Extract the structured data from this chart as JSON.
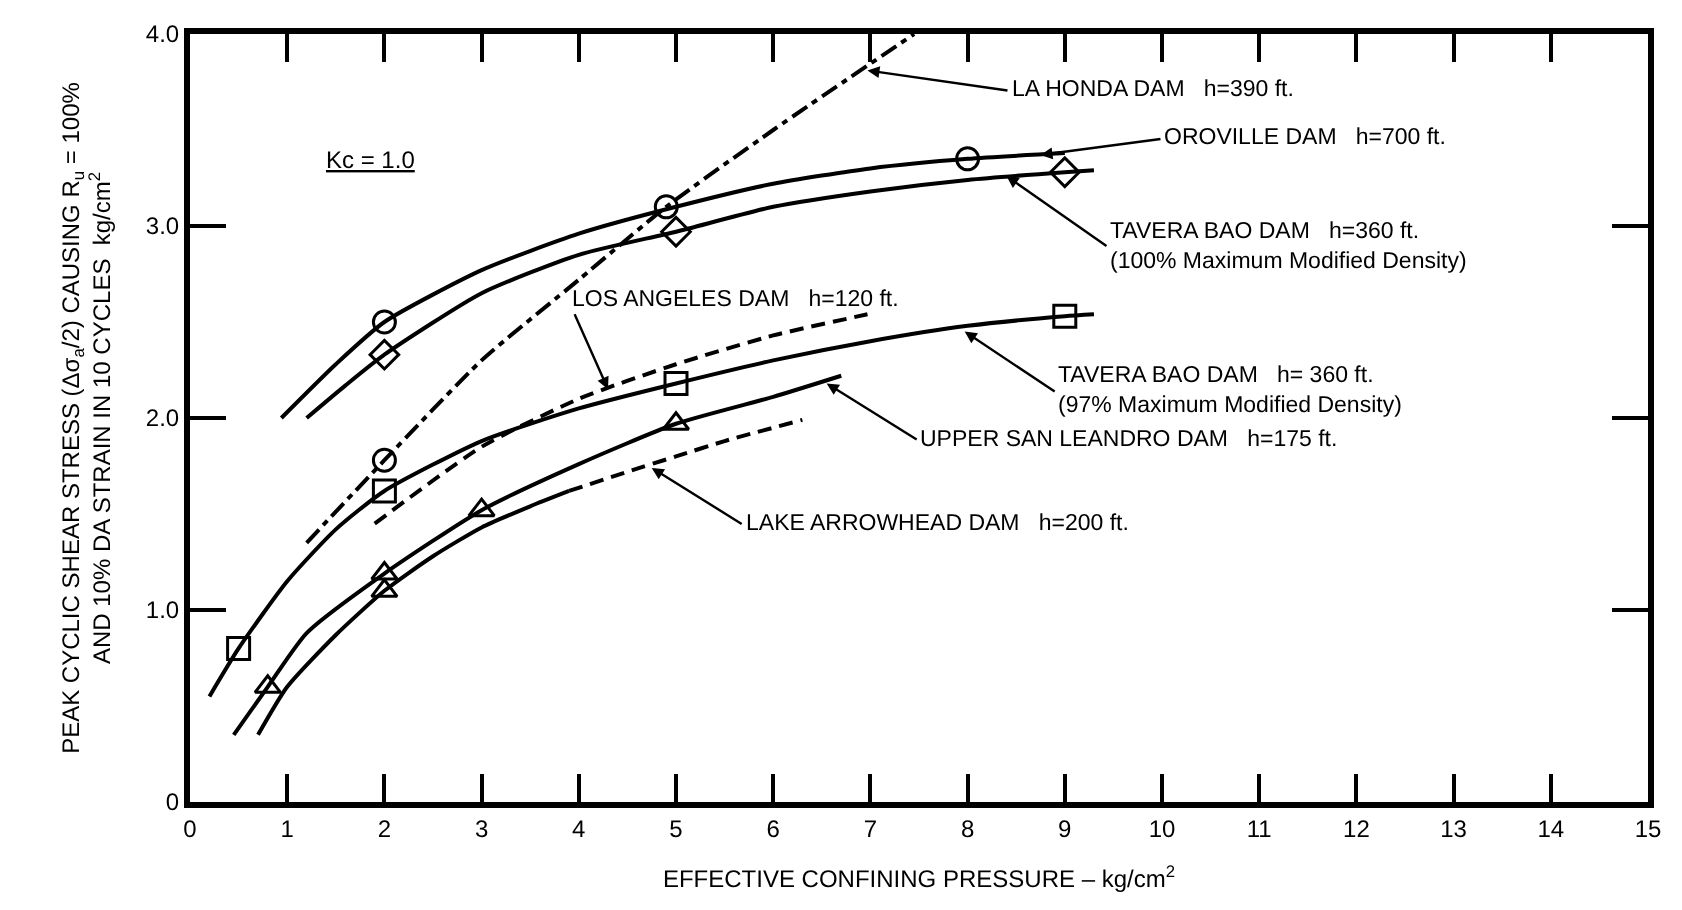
{
  "chart_data": {
    "type": "line",
    "xlabel": "EFFECTIVE CONFINING PRESSURE – kg/cm$^{2}$",
    "ylabel": "PEAK CYCLIC SHEAR STRESS (Δσ$_{a}$/2) CAUSING R$_{u}$ = 100%\nAND 10% DA STRAIN IN 10 CYCLES  kg/cm$^{2}$",
    "xlim": [
      0,
      15
    ],
    "xticks": [
      0,
      1,
      2,
      3,
      4,
      5,
      6,
      7,
      8,
      9,
      10,
      11,
      12,
      13,
      14,
      15
    ],
    "ylim": [
      0,
      4
    ],
    "yticks": [
      0,
      {
        "value": 1,
        "label": "1.0"
      },
      {
        "value": 2,
        "label": "2.0"
      },
      {
        "value": 3,
        "label": "3.0"
      },
      {
        "value": 4,
        "label": "4.0"
      }
    ],
    "marker": "none",
    "series": [
      {
        "color": "#000000",
        "line_style": "solid",
        "x": [
          0.94,
          1.5,
          2,
          3,
          4,
          5,
          6,
          7,
          8,
          9
        ],
        "values": [
          2.0,
          2.28,
          2.5,
          2.77,
          2.96,
          3.1,
          3.22,
          3.3,
          3.35,
          3.38
        ]
      },
      {
        "color": "#000000",
        "line_style": "solid",
        "x": [
          1.2,
          1.6,
          2,
          3,
          4,
          5,
          6,
          7,
          8,
          9,
          9.3
        ],
        "values": [
          2.0,
          2.17,
          2.33,
          2.65,
          2.85,
          2.97,
          3.1,
          3.18,
          3.24,
          3.28,
          3.29
        ]
      },
      {
        "color": "#000000",
        "line_style": "dashdot",
        "x": [
          1.2,
          2,
          3,
          4,
          4.9,
          6,
          7.45
        ],
        "values": [
          1.35,
          1.78,
          2.3,
          2.72,
          3.1,
          3.5,
          4.0
        ]
      },
      {
        "color": "#000000",
        "line_style": "dashed",
        "x": [
          1.9,
          3,
          4,
          5,
          6,
          6.97
        ],
        "values": [
          1.45,
          1.85,
          2.1,
          2.28,
          2.43,
          2.54
        ]
      },
      {
        "color": "#000000",
        "line_style": "solid",
        "x": [
          0.2,
          0.5,
          1,
          1.5,
          2,
          3,
          4,
          5,
          6,
          7,
          8,
          9,
          9.3
        ],
        "values": [
          0.55,
          0.8,
          1.15,
          1.42,
          1.62,
          1.88,
          2.05,
          2.18,
          2.3,
          2.4,
          2.48,
          2.53,
          2.54
        ]
      },
      {
        "color": "#000000",
        "line_style": "solid",
        "x": [
          0.45,
          0.8,
          1.2,
          2,
          3,
          4,
          5,
          6,
          6.7
        ],
        "values": [
          0.35,
          0.6,
          0.88,
          1.19,
          1.52,
          1.76,
          1.97,
          2.11,
          2.22
        ]
      },
      {
        "color": "#000000",
        "line_style": "solid",
        "x": [
          0.7,
          1,
          1.5,
          2,
          2.5,
          3,
          3.5,
          3.9
        ],
        "values": [
          0.35,
          0.6,
          0.87,
          1.1,
          1.28,
          1.43,
          1.54,
          1.62
        ]
      },
      {
        "color": "#000000",
        "line_style": "dashed",
        "x": [
          3.9,
          4.5,
          5,
          5.5,
          6.3
        ],
        "values": [
          1.62,
          1.72,
          1.8,
          1.88,
          1.99
        ]
      },
      {
        "type": "scatter",
        "marker": "circle",
        "color": "#000000",
        "x": [
          2,
          8
        ],
        "values": [
          2.5,
          3.35
        ]
      },
      {
        "type": "scatter",
        "marker": "diamond",
        "color": "#000000",
        "x": [
          2,
          5,
          9
        ],
        "values": [
          2.33,
          2.97,
          3.28
        ]
      },
      {
        "type": "scatter",
        "marker": "circle",
        "color": "#000000",
        "x": [
          2,
          4.9
        ],
        "values": [
          1.78,
          3.1
        ]
      },
      {
        "type": "scatter",
        "marker": "square",
        "color": "#000000",
        "x": [
          0.5,
          2
        ],
        "values": [
          0.8,
          1.62
        ]
      },
      {
        "type": "scatter",
        "marker": "square",
        "color": "#000000",
        "x": [
          5,
          9
        ],
        "values": [
          2.18,
          2.53
        ]
      },
      {
        "type": "scatter",
        "marker": "triangle",
        "color": "#000000",
        "x": [
          2,
          3,
          5
        ],
        "values": [
          1.19,
          1.52,
          1.97
        ]
      },
      {
        "type": "scatter",
        "marker": "triangle",
        "color": "#000000",
        "x": [
          0.8,
          2
        ],
        "values": [
          0.6,
          1.1
        ]
      }
    ],
    "annotations": [
      {
        "text": "LA HONDA DAM   h=390 ft.",
        "x": 6.97,
        "y": 3.81
      },
      {
        "text": "OROVILLE DAM   h=700 ft.",
        "x": 8.75,
        "y": 3.37
      },
      {
        "text": "TAVERA BAO DAM   h=360 ft.\n(100% Maximum Modified Density)",
        "x": 8.4,
        "y": 3.26
      },
      {
        "text": "LOS ANGELES DAM   h=120 ft.",
        "x": 4.3,
        "y": 2.15
      },
      {
        "text": "TAVERA BAO DAM   h= 360 ft.\n(97% Maximum Modified Density)",
        "x": 7.97,
        "y": 2.45
      },
      {
        "text": "UPPER SAN LEANDRO DAM   h=175 ft.",
        "x": 6.55,
        "y": 2.18
      },
      {
        "text": "LAKE ARROWHEAD DAM   h=200 ft.",
        "x": 4.75,
        "y": 1.74
      },
      "Kc = 1.0"
    ]
  }
}
